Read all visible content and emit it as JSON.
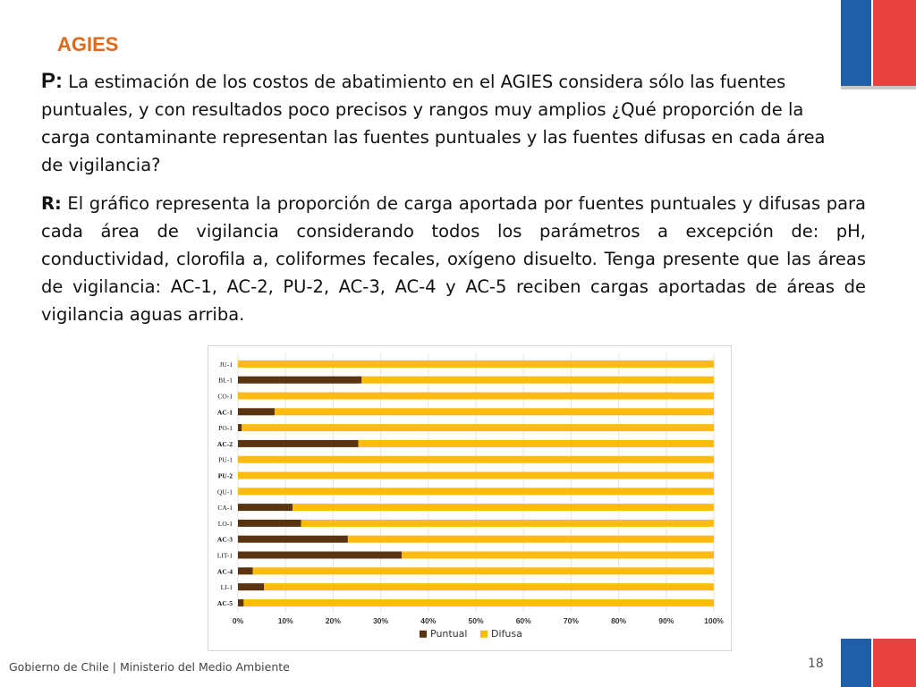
{
  "header": {
    "brand": "AGIES"
  },
  "question": {
    "lead": "P:",
    "text": " La estimación de los costos de abatimiento en el AGIES considera sólo las fuentes puntuales, y con resultados poco precisos y rangos muy amplios ¿Qué proporción de la carga contaminante representan las fuentes puntuales y las fuentes difusas en cada área de vigilancia?"
  },
  "answer": {
    "lead": "R:",
    "text": " El gráfico representa la proporción de carga aportada por fuentes puntuales y difusas para cada área de vigilancia considerando todos los parámetros a excepción de: pH, conductividad, clorofila a, coliformes fecales, oxígeno disuelto. Tenga presente que las áreas de vigilancia: AC-1, AC-2, PU-2, AC-3, AC-4 y AC-5 reciben cargas aportadas de áreas de vigilancia aguas arriba."
  },
  "chart_data": {
    "type": "bar",
    "orientation": "horizontal",
    "stacked": "percent",
    "categories": [
      "JU-1",
      "BL-1",
      "CO-1",
      "AC-1",
      "PO-1",
      "AC-2",
      "PU-1",
      "PU-2",
      "QU-1",
      "CA-1",
      "LO-1",
      "AC-3",
      "LIT-1",
      "AC-4",
      "LI-1",
      "AC-5"
    ],
    "bold_categories": [
      "AC-1",
      "AC-2",
      "PU-2",
      "AC-3",
      "AC-4",
      "AC-5"
    ],
    "series": [
      {
        "name": "Puntual",
        "color": "#5a3310",
        "values": [
          0,
          26,
          0,
          7.7,
          0.8,
          25.3,
          0,
          0,
          0,
          11.5,
          13.3,
          23.1,
          34.4,
          3.1,
          5.5,
          1.2
        ]
      },
      {
        "name": "Difusa",
        "color": "#fdbb10",
        "values": [
          100,
          74,
          100,
          92.3,
          99.2,
          74.7,
          100,
          100,
          100,
          88.5,
          86.7,
          76.9,
          65.6,
          96.9,
          94.5,
          98.8
        ]
      }
    ],
    "xlim": [
      0,
      100
    ],
    "xticks": [
      "0%",
      "10%",
      "20%",
      "30%",
      "40%",
      "50%",
      "60%",
      "70%",
      "80%",
      "90%",
      "100%"
    ],
    "grid": true,
    "legend": "bottom"
  },
  "footer": {
    "text": "Gobierno de Chile | Ministerio del Medio Ambiente",
    "page": "18"
  }
}
